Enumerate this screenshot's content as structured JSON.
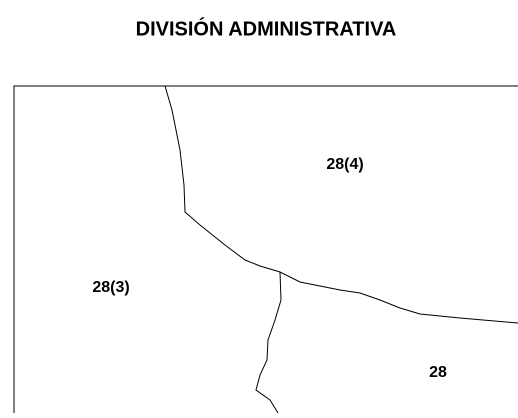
{
  "title": "DIVISIÓN ADMINISTRATIVA",
  "regions": [
    {
      "label": "28(4)"
    },
    {
      "label": "28(3)"
    },
    {
      "label": "28"
    }
  ]
}
